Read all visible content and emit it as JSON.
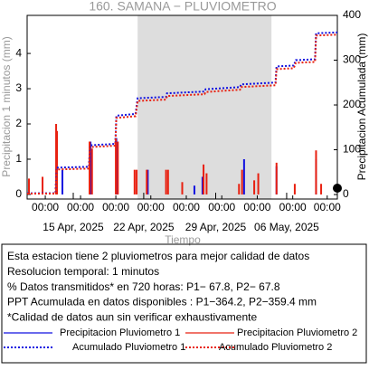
{
  "chart_data": {
    "type": "bar",
    "title": "160. SAMANA − PLUVIOMETRO",
    "x_label": "Tiempo",
    "y_label": "Precipitacion 1 minutos (mm)",
    "y2_label": "Precipitacion Acumulada (mm)",
    "xlim": [
      0,
      30.6
    ],
    "xticks": [
      {
        "value": 1.79,
        "label": "00:00"
      },
      {
        "value": 5.27,
        "label": "00:00"
      },
      {
        "value": 8.75,
        "label": "00:00"
      },
      {
        "value": 12.2,
        "label": "00:00"
      },
      {
        "value": 15.7,
        "label": "00:00"
      },
      {
        "value": 19.2,
        "label": "00:00"
      },
      {
        "value": 22.7,
        "label": "00:00"
      },
      {
        "value": 26.2,
        "label": "00:00"
      },
      {
        "value": 29.6,
        "label": "00:00"
      }
    ],
    "xticks_dates": [
      {
        "value": 4.55,
        "label": "15 Apr, 2025"
      },
      {
        "value": 11.5,
        "label": "22 Apr, 2025"
      },
      {
        "value": 18.6,
        "label": "29 Apr, 2025"
      },
      {
        "value": 25.6,
        "label": "06 May, 2025"
      }
    ],
    "ylim": [
      -0.13,
      5.08
    ],
    "yticks": [
      0,
      1,
      2,
      3,
      4
    ],
    "y2lim": [
      -10,
      400
    ],
    "y2ticks": [
      0,
      100,
      200,
      300,
      400
    ],
    "shaded_spans": [
      [
        10.9,
        24.1
      ]
    ],
    "grid": false,
    "series": [
      {
        "name": "Precipitacion Pluviometro 1",
        "type": "bar",
        "color": "#1010e0",
        "x": [
          3.48,
          6.25,
          8.8,
          11.9,
          16.5,
          17.3,
          21.4,
          24.6,
          28.5
        ],
        "values": [
          0.7,
          1.5,
          1.6,
          0.7,
          0.25,
          0.5,
          1.0,
          0.8,
          1.0
        ]
      },
      {
        "name": "Precipitacion Pluviometro 2",
        "type": "bar",
        "color": "#e82010",
        "x": [
          0.18,
          1.52,
          2.86,
          2.95,
          6.16,
          6.4,
          8.75,
          8.95,
          10.6,
          10.8,
          11.8,
          13.7,
          13.9,
          15.3,
          17.4,
          17.7,
          20.9,
          21.2,
          22.4,
          22.8,
          24.6,
          26.4,
          28.5,
          29.0
        ],
        "values": [
          0.45,
          0.5,
          2.0,
          1.8,
          1.5,
          1.3,
          1.6,
          1.5,
          0.7,
          0.7,
          0.7,
          0.7,
          0.7,
          0.35,
          0.85,
          0.6,
          0.3,
          0.7,
          0.4,
          0.6,
          0.9,
          0.3,
          1.25,
          0.3
        ]
      },
      {
        "name": "Acumulado Pluviometro 1",
        "type": "line",
        "axis": "y2",
        "color": "#1010e0",
        "x": [
          0,
          2.8,
          2.9,
          6.1,
          6.2,
          8.7,
          8.8,
          10.7,
          10.9,
          13.7,
          13.8,
          17.5,
          17.6,
          21.0,
          21.1,
          24.5,
          24.6,
          26.3,
          26.5,
          28.4,
          28.5,
          30.6
        ],
        "values": [
          3,
          3,
          60,
          62,
          110,
          113,
          176,
          180,
          215,
          218,
          226,
          230,
          235,
          240,
          246,
          250,
          286,
          288,
          300,
          302,
          360,
          362
        ]
      },
      {
        "name": "Acumulado Pluviometro 2",
        "type": "line",
        "axis": "y2",
        "color": "#e82010",
        "x": [
          0,
          2.8,
          2.9,
          6.1,
          6.2,
          8.7,
          8.8,
          10.7,
          10.9,
          13.7,
          13.8,
          17.5,
          17.6,
          21.0,
          21.1,
          24.5,
          24.6,
          26.3,
          26.5,
          28.4,
          28.5,
          30.6
        ],
        "values": [
          2,
          2,
          56,
          58,
          106,
          109,
          171,
          175,
          209,
          212,
          220,
          224,
          229,
          234,
          240,
          244,
          280,
          282,
          294,
          296,
          355,
          357
        ]
      }
    ],
    "notes": [
      "Esta estacion tiene 2 pluviometros para mejor calidad de datos",
      "Resolucion temporal: 1 minutos",
      "% Datos transmitidos* en 720 horas: P1− 67.8, P2− 67.8",
      "PPT Acumulada en datos disponibles : P1−364.2, P2−359.4 mm",
      "*Calidad de datos aun sin verificar exhaustivamente"
    ]
  }
}
